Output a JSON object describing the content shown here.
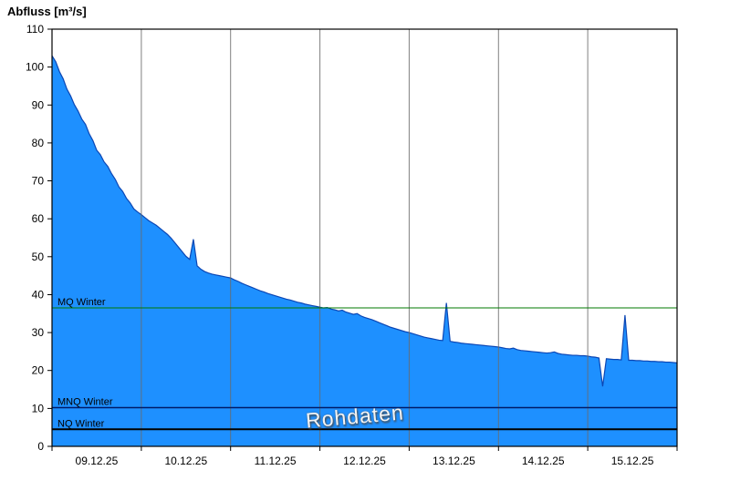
{
  "title": "Abfluss [m³/s]",
  "watermark": "Rohdaten",
  "chart_data": {
    "type": "area",
    "title": "Abfluss [m³/s]",
    "xlabel": "",
    "ylabel": "Abfluss [m³/s]",
    "series_name": "Abfluss Rohdaten",
    "x_tick_labels": [
      "09.12.25",
      "10.12.25",
      "11.12.25",
      "12.12.25",
      "13.12.25",
      "14.12.25",
      "15.12.25"
    ],
    "x_range_days": [
      0,
      7
    ],
    "ylim": [
      0,
      110
    ],
    "y_tick_labels": [
      0,
      10,
      20,
      30,
      40,
      50,
      60,
      70,
      80,
      90,
      100,
      110
    ],
    "grid": "vertical-daily",
    "legend": "none",
    "sampling": {
      "start_day": 0,
      "step_hours": 1,
      "unit": "m³/s"
    },
    "values": [
      103.0,
      101.4,
      98.8,
      96.9,
      94.2,
      92.4,
      90.1,
      88.4,
      86.3,
      84.9,
      82.4,
      80.6,
      78.1,
      76.9,
      75.0,
      73.8,
      71.9,
      70.4,
      68.4,
      67.2,
      65.4,
      64.2,
      62.6,
      61.8,
      61.1,
      60.3,
      59.5,
      58.9,
      58.3,
      57.5,
      56.7,
      55.9,
      54.9,
      53.7,
      52.5,
      51.3,
      50.1,
      49.3,
      54.6,
      47.6,
      46.7,
      46.1,
      45.7,
      45.4,
      45.2,
      45.0,
      44.8,
      44.6,
      44.4,
      43.9,
      43.5,
      43.0,
      42.6,
      42.2,
      41.8,
      41.4,
      41.0,
      40.7,
      40.3,
      40.0,
      39.7,
      39.4,
      39.1,
      38.8,
      38.6,
      38.3,
      38.0,
      37.8,
      37.5,
      37.3,
      37.1,
      36.9,
      36.7,
      36.5,
      36.6,
      36.2,
      36.0,
      35.7,
      35.9,
      35.4,
      35.1,
      34.8,
      35.0,
      34.4,
      34.0,
      33.7,
      33.4,
      33.0,
      32.6,
      32.2,
      31.8,
      31.4,
      31.1,
      30.8,
      30.5,
      30.2,
      30.0,
      29.7,
      29.4,
      29.1,
      28.8,
      28.6,
      28.4,
      28.2,
      28.0,
      27.9,
      37.8,
      27.7,
      27.5,
      27.4,
      27.2,
      27.1,
      27.0,
      26.9,
      26.8,
      26.7,
      26.6,
      26.5,
      26.4,
      26.3,
      26.2,
      26.0,
      25.8,
      25.7,
      25.9,
      25.5,
      25.3,
      25.2,
      25.1,
      25.0,
      24.9,
      24.8,
      24.7,
      24.6,
      24.7,
      24.9,
      24.5,
      24.3,
      24.2,
      24.1,
      24.0,
      24.0,
      23.9,
      23.9,
      23.8,
      23.6,
      23.5,
      23.3,
      15.8,
      23.1,
      23.0,
      22.9,
      22.9,
      22.8,
      34.6,
      22.7,
      22.7,
      22.6,
      22.6,
      22.5,
      22.5,
      22.4,
      22.4,
      22.3,
      22.3,
      22.2,
      22.2,
      22.1,
      22.0
    ],
    "ref_lines": [
      {
        "label": "MQ Winter",
        "value": 36.5,
        "color": "#007a00",
        "width": 1
      },
      {
        "label": "MNQ Winter",
        "value": 10.2,
        "color": "#001a66",
        "width": 1.5
      },
      {
        "label": "NQ Winter",
        "value": 4.5,
        "color": "#000000",
        "width": 2
      }
    ],
    "colors": {
      "area_fill": "#1e90ff",
      "area_stroke": "#0b46b4",
      "grid": "#6a6a6a",
      "axis": "#000000",
      "tick_text": "#000000"
    }
  }
}
